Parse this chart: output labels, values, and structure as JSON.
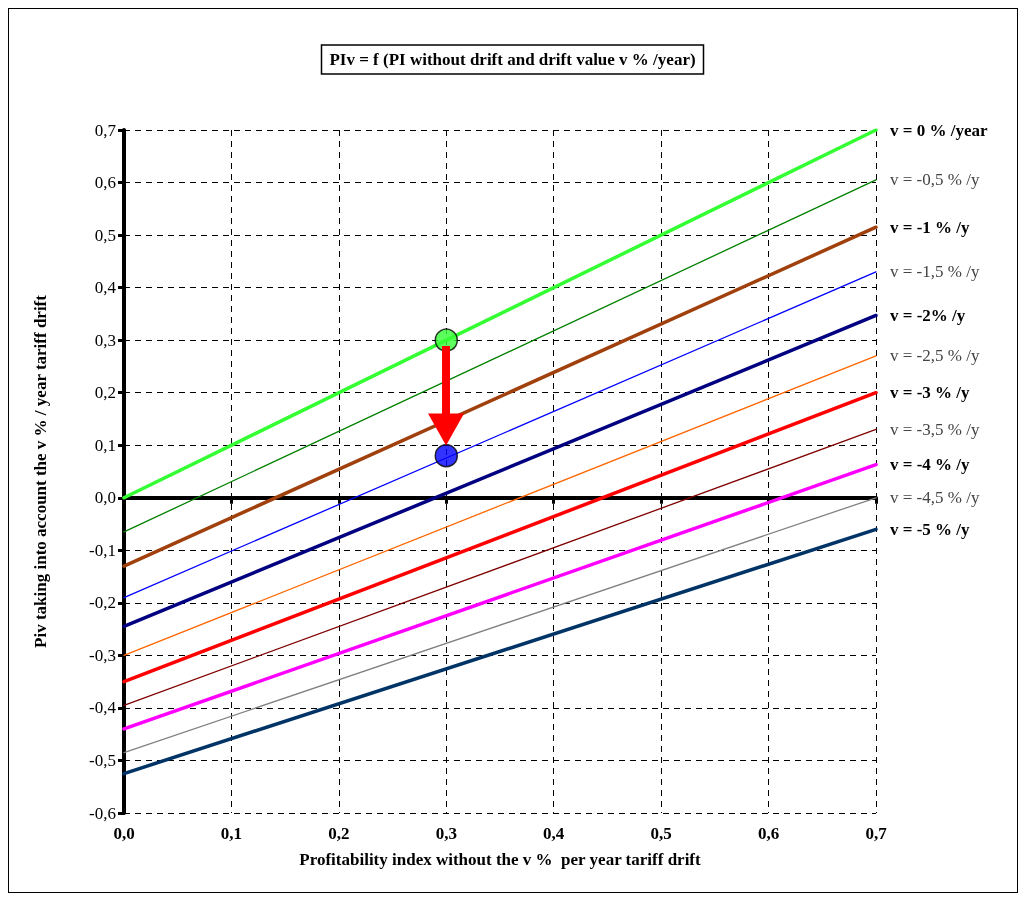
{
  "chart_data": {
    "type": "line",
    "title": "PIv = f (PI without drift and drift value v % /year)",
    "xlabel": "Profitability index without the v %  per year tariff drift",
    "ylabel": "Piv taking into account the v % / year tariff drift",
    "x": [
      0,
      0.7
    ],
    "series": [
      {
        "name": "v = 0 % /year",
        "color": "#33ff33",
        "values": [
          0,
          0.7
        ]
      },
      {
        "name": "v = -0,5 % /y",
        "color": "#008000",
        "values": [
          -0.065,
          0.605
        ]
      },
      {
        "name": "v = -1 % /y",
        "color": "#a0410d",
        "values": [
          -0.13,
          0.515
        ]
      },
      {
        "name": "v = -1,5 % /y",
        "color": "#0000ff",
        "values": [
          -0.19,
          0.43
        ]
      },
      {
        "name": "v = -2% /y",
        "color": "#000080",
        "values": [
          -0.245,
          0.347
        ]
      },
      {
        "name": "v = -2,5 % /y",
        "color": "#ff6600",
        "values": [
          -0.3,
          0.27
        ]
      },
      {
        "name": "v = -3 % /y",
        "color": "#ff0000",
        "values": [
          -0.35,
          0.2
        ]
      },
      {
        "name": "v = -3,5 % /y",
        "color": "#800000",
        "values": [
          -0.395,
          0.13
        ]
      },
      {
        "name": "v = -4 % /y",
        "color": "#ff00ff",
        "values": [
          -0.44,
          0.063
        ]
      },
      {
        "name": "v = -4,5 % /y",
        "color": "#808080",
        "values": [
          -0.485,
          0.0
        ]
      },
      {
        "name": "v = -5 % /y",
        "color": "#003366",
        "values": [
          -0.525,
          -0.06
        ]
      },
      {
        "type": "scatter",
        "marker": "circle",
        "x": [
          0.3,
          0.3
        ],
        "values": [
          0.3,
          0.08
        ],
        "colors": [
          "#33ff33",
          "#0000ff"
        ]
      }
    ],
    "xlim": [
      0,
      0.7
    ],
    "xticks": [
      {
        "value": 0,
        "label": "0,0"
      },
      {
        "value": 0.1,
        "label": "0,1"
      },
      {
        "value": 0.2,
        "label": "0,2"
      },
      {
        "value": 0.3,
        "label": "0,3"
      },
      {
        "value": 0.4,
        "label": "0,4"
      },
      {
        "value": 0.5,
        "label": "0,5"
      },
      {
        "value": 0.6,
        "label": "0,6"
      },
      {
        "value": 0.7,
        "label": "0,7"
      }
    ],
    "ylim": [
      -0.6,
      0.7
    ],
    "yticks": [
      {
        "value": -0.6,
        "label": "-0,6"
      },
      {
        "value": -0.5,
        "label": "-0,5"
      },
      {
        "value": -0.4,
        "label": "-0,4"
      },
      {
        "value": -0.3,
        "label": "-0,3"
      },
      {
        "value": -0.2,
        "label": "-0,2"
      },
      {
        "value": -0.1,
        "label": "-0,1"
      },
      {
        "value": 0,
        "label": "0,0"
      },
      {
        "value": 0.1,
        "label": "0,1"
      },
      {
        "value": 0.2,
        "label": "0,2"
      },
      {
        "value": 0.3,
        "label": "0,3"
      },
      {
        "value": 0.4,
        "label": "0,4"
      },
      {
        "value": 0.5,
        "label": "0,5"
      },
      {
        "value": 0.6,
        "label": "0,6"
      },
      {
        "value": 0.7,
        "label": "0,7"
      }
    ],
    "grid": true,
    "legend": false,
    "marker": "none",
    "line_style": "solid"
  }
}
